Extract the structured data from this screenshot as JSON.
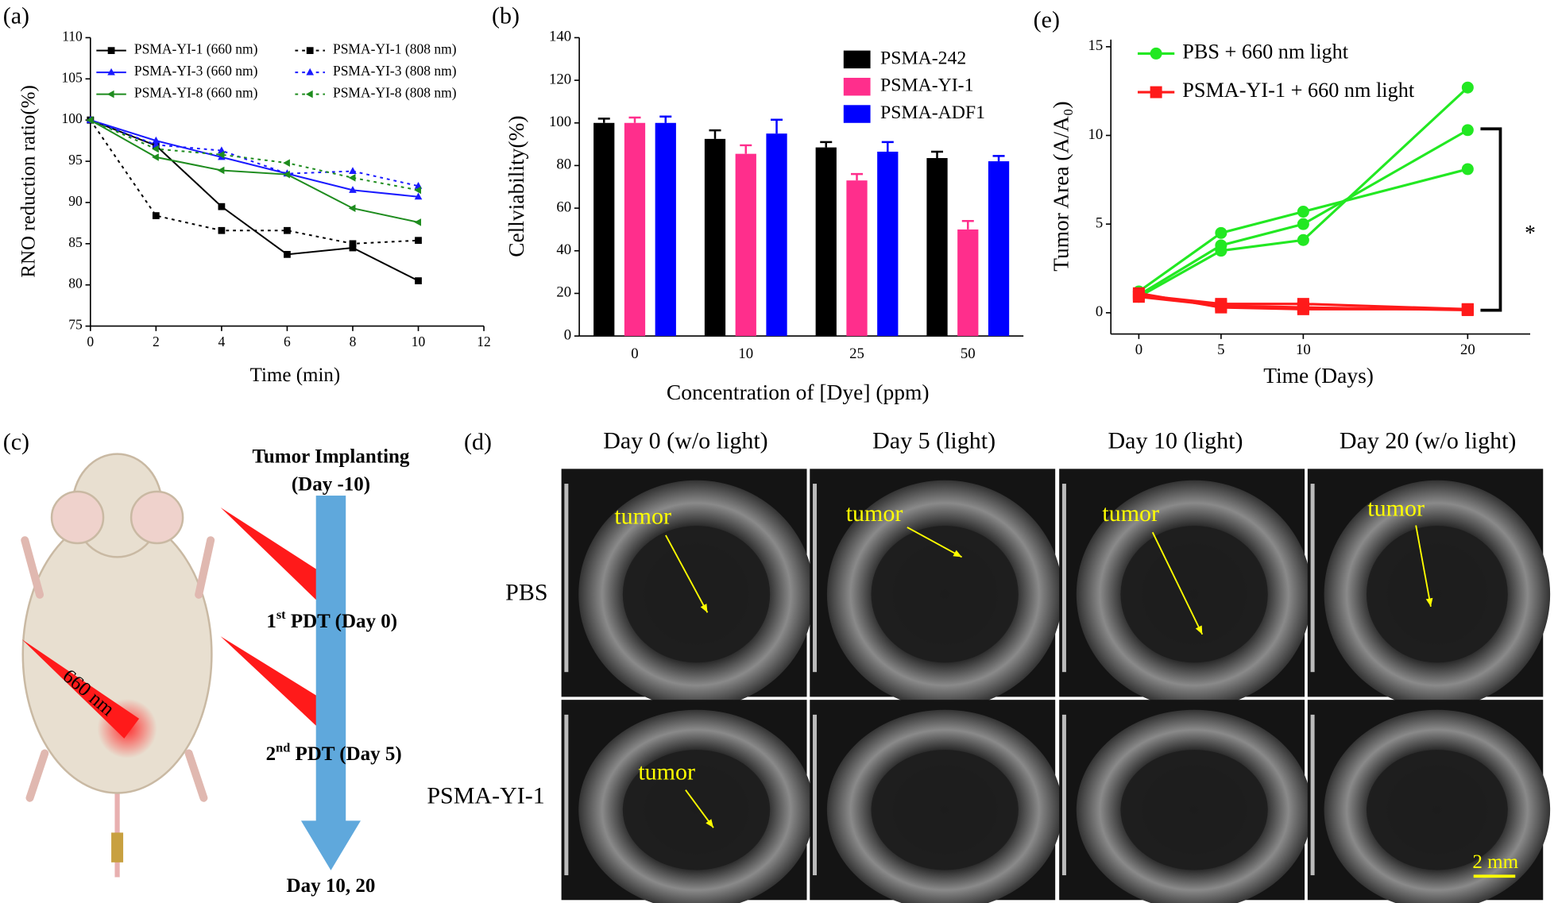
{
  "chart_data": [
    {
      "type": "line",
      "panel_label": "(a)",
      "xlabel": "Time (min)",
      "ylabel": "RNO reduction ratio(%)",
      "x": [
        0,
        2,
        4,
        6,
        8,
        10
      ],
      "xlim": [
        0,
        12
      ],
      "xticks": [
        0,
        2,
        4,
        6,
        8,
        10,
        12
      ],
      "ylim": [
        75,
        110
      ],
      "yticks": [
        75,
        80,
        85,
        90,
        95,
        100,
        105,
        110
      ],
      "legend": "top",
      "series": [
        {
          "name": "PSMA-YI-1 (660 nm)",
          "color": "#000000",
          "marker": "square",
          "dashed": false,
          "values": [
            100,
            96.9,
            89.5,
            83.7,
            84.5,
            80.5
          ]
        },
        {
          "name": "PSMA-YI-1 (808 nm)",
          "color": "#000000",
          "marker": "square",
          "dashed": true,
          "values": [
            100,
            88.4,
            86.6,
            86.6,
            85.0,
            85.4
          ]
        },
        {
          "name": "PSMA-YI-3 (660 nm)",
          "color": "#1a1aff",
          "marker": "triangle",
          "dashed": false,
          "values": [
            100,
            97.5,
            95.5,
            93.5,
            91.5,
            90.7
          ]
        },
        {
          "name": "PSMA-YI-3 (808 nm)",
          "color": "#1a1aff",
          "marker": "triangle",
          "dashed": true,
          "values": [
            100,
            97.0,
            96.3,
            93.5,
            93.8,
            92.0
          ]
        },
        {
          "name": "PSMA-YI-8 (660 nm)",
          "color": "#1e8c1e",
          "marker": "triangle-left",
          "dashed": false,
          "values": [
            100,
            95.5,
            93.9,
            93.4,
            89.3,
            87.6
          ]
        },
        {
          "name": "PSMA-YI-8 (808 nm)",
          "color": "#1e8c1e",
          "marker": "triangle-left",
          "dashed": true,
          "values": [
            100,
            96.5,
            95.8,
            94.8,
            93.0,
            91.5
          ]
        }
      ]
    },
    {
      "type": "bar",
      "panel_label": "(b)",
      "xlabel": "Concentration of [Dye] (ppm)",
      "ylabel": "Cellviability(%)",
      "categories": [
        "0",
        "10",
        "25",
        "50"
      ],
      "ylim": [
        0,
        140
      ],
      "yticks": [
        0,
        20,
        40,
        60,
        80,
        100,
        120,
        140
      ],
      "legend": "top-right",
      "series": [
        {
          "name": "PSMA-242",
          "color": "#000000",
          "values": [
            100,
            92.5,
            88.5,
            83.5
          ],
          "errors": [
            2,
            4,
            2.5,
            3
          ]
        },
        {
          "name": "PSMA-YI-1",
          "color": "#ff2e8c",
          "values": [
            100,
            85.5,
            73,
            50
          ],
          "errors": [
            2.5,
            4,
            3,
            4
          ]
        },
        {
          "name": "PSMA-ADF1",
          "color": "#0000ff",
          "values": [
            100,
            95,
            86.5,
            82
          ],
          "errors": [
            3,
            6.5,
            4.5,
            2.5
          ]
        }
      ]
    },
    {
      "type": "line",
      "panel_label": "(e)",
      "xlabel": "Time (Days)",
      "ylabel": "Tumor Area (A/A₀)",
      "x": [
        0,
        5,
        10,
        20
      ],
      "xlim": [
        -1.7,
        23.8
      ],
      "xticks": [
        0,
        5,
        10,
        20
      ],
      "ylim": [
        -1.2,
        15.4
      ],
      "yticks": [
        0,
        5,
        10,
        15
      ],
      "legend": "top-left",
      "significance": "*",
      "series": [
        {
          "name": "PBS + 660 nm light",
          "color": "#22e822",
          "marker": "circle",
          "replicates": [
            [
              0.9,
              3.5,
              4.1,
              12.7
            ],
            [
              1.0,
              3.8,
              5.0,
              10.3
            ],
            [
              1.2,
              4.5,
              5.7,
              8.1
            ]
          ]
        },
        {
          "name": "PSMA-YI-1 + 660 nm light",
          "color": "#ff1a1a",
          "marker": "square",
          "replicates": [
            [
              1.0,
              0.5,
              0.5,
              0.2
            ],
            [
              0.9,
              0.4,
              0.3,
              0.15
            ],
            [
              1.1,
              0.3,
              0.2,
              0.2
            ]
          ]
        }
      ]
    }
  ],
  "panel_c": {
    "panel_label": "(c)",
    "light": "660 nm",
    "start": [
      "Tumor Implanting",
      "(Day -10)"
    ],
    "steps": [
      {
        "number": "1",
        "suffix": "st",
        "text": " PDT (Day 0)"
      },
      {
        "number": "2",
        "suffix": "nd",
        "text": " PDT (Day 5)"
      }
    ],
    "end": "Day 10, 20"
  },
  "panel_d": {
    "panel_label": "(d)",
    "columns": [
      "Day 0 (w/o light)",
      "Day 5 (light)",
      "Day 10 (light)",
      "Day 20 (w/o light)"
    ],
    "rows": [
      "PBS",
      "PSMA-YI-1"
    ],
    "tumor_labels": [
      "tumor",
      "tumor",
      "tumor",
      "tumor",
      "tumor"
    ],
    "scale_bar": "2 mm"
  }
}
